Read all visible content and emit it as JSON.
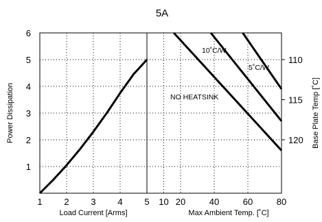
{
  "chart_data": {
    "type": "line",
    "title": "5A",
    "left_panel": {
      "xlabel": "Load Current  [Arms]",
      "ylabel": "Power Dissipation",
      "xlim": [
        1,
        5
      ],
      "ylim": [
        0,
        6
      ],
      "x_ticks": [
        "1",
        "2",
        "3",
        "4",
        "5"
      ],
      "y_ticks": [
        "1",
        "2",
        "3",
        "4",
        "5",
        "6"
      ],
      "series": [
        {
          "x": [
            1,
            1.5,
            2,
            2.5,
            3,
            3.5,
            4,
            4.5,
            5
          ],
          "y": [
            0,
            0.5,
            1.05,
            1.65,
            2.3,
            3.0,
            3.75,
            4.45,
            5.0
          ]
        }
      ]
    },
    "right_panel": {
      "xlabel": "Max Ambient Temp. [˚C]",
      "ylabel": "Base Plate Temp [˚C]",
      "xlim": [
        0,
        80
      ],
      "ylim_power": [
        0,
        6
      ],
      "x_ticks": [
        "10",
        "20",
        "40",
        "60",
        "80"
      ],
      "right_ticks": [
        {
          "label": "110",
          "power": 5.0
        },
        {
          "label": "115",
          "power": 3.5
        },
        {
          "label": "120",
          "power": 2.0
        }
      ],
      "series": [
        {
          "name": "NO HEATSINK",
          "x": [
            16,
            80
          ],
          "y": [
            6.0,
            1.6
          ]
        },
        {
          "name": "10˚C/W",
          "x": [
            38,
            80
          ],
          "y": [
            6.0,
            2.7
          ]
        },
        {
          "name": "5˚C/W",
          "x": [
            57,
            80
          ],
          "y": [
            6.0,
            3.9
          ]
        }
      ]
    },
    "grid": true
  },
  "colors": {
    "line": "#000000",
    "grid": "#000000",
    "background": "#ffffff"
  }
}
